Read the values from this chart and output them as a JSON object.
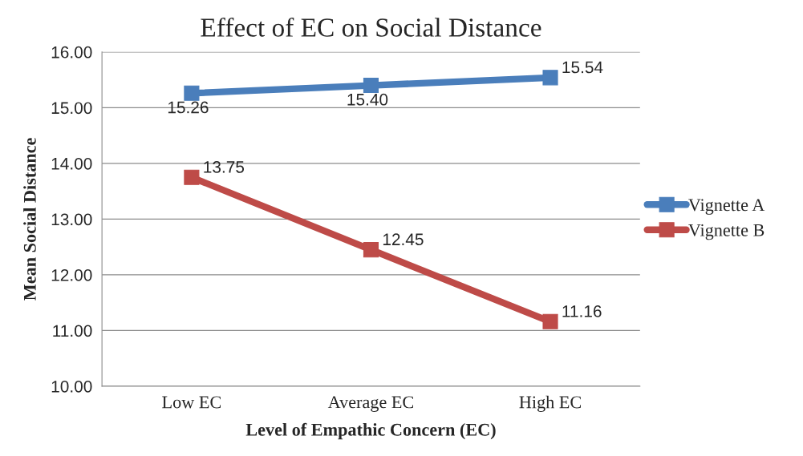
{
  "chart_data": {
    "type": "line",
    "title": "Effect of EC on Social Distance",
    "xlabel": "Level of Empathic Concern (EC)",
    "ylabel": "Mean Social Distance",
    "categories": [
      "Low EC",
      "Average EC",
      "High EC"
    ],
    "series": [
      {
        "name": "Vignette A",
        "color": "#4a7ebb",
        "values": [
          15.26,
          15.4,
          15.54
        ],
        "value_labels": [
          "15.26",
          "15.40",
          "15.54"
        ]
      },
      {
        "name": "Vignette B",
        "color": "#be4b48",
        "values": [
          13.75,
          12.45,
          11.16
        ],
        "value_labels": [
          "13.75",
          "12.45",
          "11.16"
        ]
      }
    ],
    "ylim": [
      10,
      16
    ],
    "yticks": [
      {
        "value": 10,
        "label": "10.00"
      },
      {
        "value": 11,
        "label": "11.00"
      },
      {
        "value": 12,
        "label": "12.00"
      },
      {
        "value": 13,
        "label": "13.00"
      },
      {
        "value": 14,
        "label": "14.00"
      },
      {
        "value": 15,
        "label": "15.00"
      },
      {
        "value": 16,
        "label": "16.00"
      }
    ],
    "grid": "y",
    "legend": "right",
    "marker": "square",
    "line_style": "solid"
  }
}
